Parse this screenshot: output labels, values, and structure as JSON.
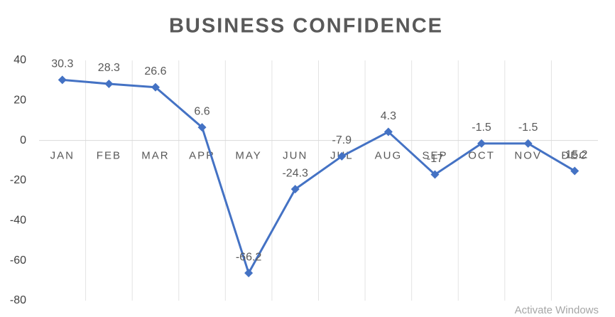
{
  "chart_data": {
    "type": "line",
    "title": "BUSINESS CONFIDENCE",
    "categories": [
      "JAN",
      "FEB",
      "MAR",
      "APR",
      "MAY",
      "JUN",
      "JUL",
      "AUG",
      "SEP",
      "OCT",
      "NOV",
      "DEC"
    ],
    "values": [
      30.3,
      28.3,
      26.6,
      6.6,
      -66.2,
      -24.3,
      -7.9,
      4.3,
      -17,
      -1.5,
      -1.5,
      -15.2
    ],
    "color": "#4472c4",
    "ylim": [
      -80,
      40
    ],
    "yticks": [
      -80,
      -60,
      -40,
      -20,
      0,
      20,
      40
    ],
    "grid": true
  },
  "watermark": "Activate Windows"
}
